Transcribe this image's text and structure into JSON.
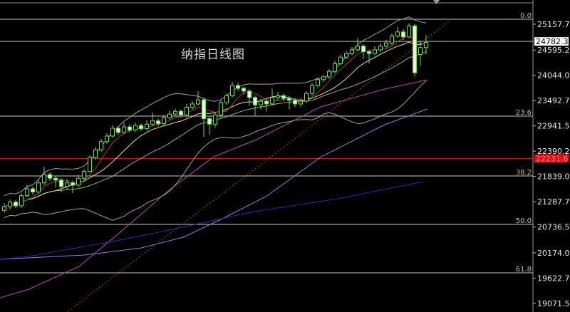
{
  "chart_data": {
    "type": "candlestick",
    "title": "纳指日线图",
    "y_ticks": [
      "25157.75",
      "24595.25",
      "24044.00",
      "23492.75",
      "22941.50",
      "22390.25",
      "21839.00",
      "21287.75",
      "20736.50",
      "20174.00",
      "19622.75",
      "19071.50"
    ],
    "y_tick_values": [
      25157.75,
      24595.25,
      24044.0,
      23492.75,
      22941.5,
      22390.25,
      21839.0,
      21287.75,
      20736.5,
      20174.0,
      19622.75,
      19071.5
    ],
    "ylim": [
      18950,
      25600
    ],
    "current_price": {
      "label": "24782.33",
      "value": 24782.33
    },
    "red_level": {
      "label": "22231.67",
      "value": 22231.67
    },
    "fib_levels": [
      {
        "label": "0.0",
        "value": 25266
      },
      {
        "label": "23.6",
        "value": 23154
      },
      {
        "label": "38.2",
        "value": 21850
      },
      {
        "label": "50.0",
        "value": 20794
      },
      {
        "label": "61.8",
        "value": 19738
      }
    ],
    "candles": [
      [
        21100,
        21260,
        21050,
        21180
      ],
      [
        21180,
        21340,
        21120,
        21280
      ],
      [
        21280,
        21330,
        21150,
        21200
      ],
      [
        21200,
        21480,
        21150,
        21420
      ],
      [
        21420,
        21650,
        21380,
        21570
      ],
      [
        21570,
        21620,
        21440,
        21500
      ],
      [
        21500,
        21760,
        21450,
        21700
      ],
      [
        21700,
        22050,
        21650,
        21880
      ],
      [
        21880,
        21930,
        21740,
        21800
      ],
      [
        21800,
        21850,
        21600,
        21760
      ],
      [
        21760,
        21800,
        21500,
        21620
      ],
      [
        21620,
        21780,
        21560,
        21700
      ],
      [
        21700,
        21750,
        21480,
        21650
      ],
      [
        21650,
        21880,
        21600,
        21800
      ],
      [
        21800,
        22000,
        21740,
        21950
      ],
      [
        21950,
        22300,
        21920,
        22250
      ],
      [
        22250,
        22480,
        22200,
        22420
      ],
      [
        22420,
        22660,
        22380,
        22600
      ],
      [
        22600,
        22780,
        22550,
        22720
      ],
      [
        22720,
        22960,
        22680,
        22890
      ],
      [
        22890,
        22940,
        22740,
        22800
      ],
      [
        22800,
        23020,
        22760,
        22920
      ],
      [
        22920,
        22980,
        22800,
        22850
      ],
      [
        22850,
        23020,
        22810,
        22950
      ],
      [
        22950,
        23000,
        22830,
        22880
      ],
      [
        22880,
        23060,
        22840,
        22980
      ],
      [
        22980,
        23230,
        22940,
        23050
      ],
      [
        23050,
        23100,
        22930,
        22990
      ],
      [
        22990,
        23180,
        22950,
        23120
      ],
      [
        23120,
        23280,
        23080,
        23200
      ],
      [
        23200,
        23320,
        23150,
        23260
      ],
      [
        23260,
        23300,
        23120,
        23180
      ],
      [
        23180,
        23420,
        23140,
        23350
      ],
      [
        23350,
        23480,
        23300,
        23420
      ],
      [
        23420,
        23700,
        23380,
        23510
      ],
      [
        23510,
        23560,
        22700,
        23100
      ],
      [
        23100,
        23150,
        22750,
        22980
      ],
      [
        22980,
        23250,
        22900,
        23180
      ],
      [
        23180,
        23500,
        23120,
        23450
      ],
      [
        23450,
        23650,
        23400,
        23600
      ],
      [
        23600,
        23900,
        23560,
        23820
      ],
      [
        23820,
        23880,
        23700,
        23760
      ],
      [
        23760,
        23800,
        23620,
        23700
      ],
      [
        23700,
        23740,
        23380,
        23560
      ],
      [
        23560,
        23600,
        23150,
        23400
      ],
      [
        23400,
        23530,
        23300,
        23480
      ],
      [
        23480,
        23520,
        23250,
        23420
      ],
      [
        23420,
        23750,
        23380,
        23560
      ],
      [
        23560,
        23680,
        23500,
        23600
      ],
      [
        23600,
        23650,
        23480,
        23540
      ],
      [
        23540,
        23590,
        23300,
        23500
      ],
      [
        23500,
        23560,
        23350,
        23420
      ],
      [
        23420,
        23540,
        23360,
        23480
      ],
      [
        23480,
        23700,
        23440,
        23650
      ],
      [
        23650,
        23880,
        23600,
        23820
      ],
      [
        23820,
        24000,
        23780,
        23950
      ],
      [
        23950,
        24060,
        23900,
        24010
      ],
      [
        24010,
        24180,
        23960,
        24130
      ],
      [
        24130,
        24360,
        24080,
        24300
      ],
      [
        24300,
        24500,
        24260,
        24440
      ],
      [
        24440,
        24580,
        24400,
        24520
      ],
      [
        24520,
        24660,
        24480,
        24600
      ],
      [
        24600,
        24860,
        24560,
        24680
      ],
      [
        24680,
        24720,
        24400,
        24560
      ],
      [
        24560,
        24600,
        24300,
        24520
      ],
      [
        24520,
        24680,
        24480,
        24600
      ],
      [
        24600,
        24740,
        24550,
        24680
      ],
      [
        24680,
        24820,
        24640,
        24750
      ],
      [
        24750,
        24960,
        24700,
        24900
      ],
      [
        24900,
        25100,
        24860,
        24990
      ],
      [
        24990,
        25060,
        24820,
        24880
      ],
      [
        24880,
        25180,
        24850,
        25120
      ],
      [
        25120,
        25160,
        24020,
        24100
      ],
      [
        24500,
        24800,
        24250,
        24650
      ],
      [
        24650,
        24920,
        24500,
        24760
      ]
    ],
    "overlay_lines": [
      {
        "color": "#c040c0",
        "points": [
          [
            -0.75,
            19194
          ],
          [
            4.25,
            19380
          ],
          [
            13.1,
            19877
          ],
          [
            19,
            20483
          ],
          [
            28.9,
            21539
          ],
          [
            36.75,
            22269
          ],
          [
            44.25,
            22642
          ],
          [
            55.5,
            23356
          ],
          [
            66.75,
            23744
          ],
          [
            74.25,
            23946
          ]
        ]
      },
      {
        "color": "#7a86e0",
        "points": [
          [
            -0.75,
            20033
          ],
          [
            14.1,
            20126
          ],
          [
            24,
            20281
          ],
          [
            31.4,
            20514
          ],
          [
            38.75,
            20949
          ],
          [
            46.1,
            21415
          ],
          [
            55.6,
            22269
          ],
          [
            66.75,
            22968
          ],
          [
            74.25,
            23310
          ]
        ]
      },
      {
        "color": "#2a2ab8",
        "points": [
          [
            -0.75,
            20033
          ],
          [
            4.25,
            20095
          ],
          [
            19,
            20421
          ],
          [
            28.9,
            20670
          ],
          [
            43.75,
            21073
          ],
          [
            58.5,
            21353
          ],
          [
            73.4,
            21726
          ]
        ]
      }
    ],
    "trendline": {
      "color": "#d03a2a",
      "points": [
        [
          4.6,
          18278
        ],
        [
          78,
          25220
        ]
      ]
    },
    "colors": {
      "background": "#000000",
      "candle": "#66e05a",
      "ma_short": "#c0302a",
      "ma_mid": "#e8e090",
      "bands": "#9aa890",
      "fib_line": "#c8c8b4",
      "red_line": "#d02020"
    }
  }
}
